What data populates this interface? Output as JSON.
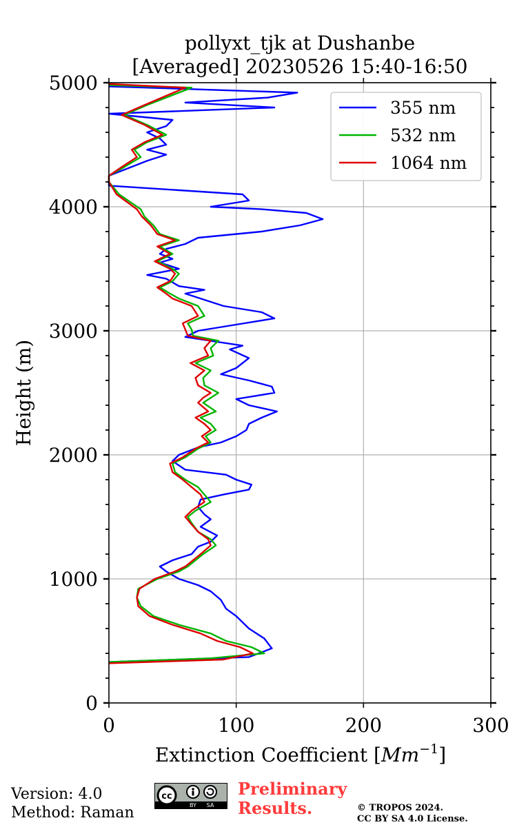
{
  "chart_data": {
    "type": "line",
    "title_line1": "pollyxt_tjk at Dushanbe",
    "title_line2": "[Averaged] 20230526 15:40-16:50",
    "xlabel_text": "Extinction Coefficient [",
    "xlabel_unit": "Mm",
    "xlabel_exp": "−1",
    "xlabel_close": "]",
    "ylabel": "Height (m)",
    "xlim": [
      0,
      300
    ],
    "ylim": [
      0,
      5000
    ],
    "xticks": [
      0,
      100,
      200,
      300
    ],
    "yticks": [
      0,
      1000,
      2000,
      3000,
      4000,
      5000
    ],
    "grid": true,
    "legend_position": "top-right",
    "series": [
      {
        "name": "355 nm",
        "color": "#0000ff",
        "x": [
          0,
          110,
          128,
          122,
          110,
          105,
          100,
          92,
          88,
          80,
          70,
          55,
          45,
          40,
          50,
          65,
          70,
          80,
          85,
          72,
          80,
          75,
          70,
          72,
          90,
          110,
          112,
          100,
          92,
          60,
          50,
          55,
          70,
          88,
          100,
          108,
          110,
          120,
          132,
          110,
          100,
          130,
          128,
          110,
          88,
          100,
          110,
          95,
          105,
          60,
          70,
          100,
          130,
          120,
          90,
          75,
          60,
          75,
          55,
          45,
          30,
          55,
          40,
          50,
          40,
          45,
          60,
          70,
          120,
          150,
          168,
          155,
          120,
          80,
          110,
          105,
          0,
          0,
          30,
          45,
          30,
          45,
          40,
          30,
          45,
          50,
          0,
          130,
          60,
          125,
          148,
          0
        ],
        "y": [
          330,
          370,
          440,
          520,
          600,
          650,
          700,
          760,
          830,
          900,
          950,
          1000,
          1060,
          1100,
          1150,
          1200,
          1260,
          1300,
          1350,
          1420,
          1480,
          1520,
          1580,
          1640,
          1680,
          1720,
          1760,
          1800,
          1840,
          1880,
          1950,
          2000,
          2060,
          2100,
          2150,
          2200,
          2250,
          2300,
          2350,
          2400,
          2450,
          2500,
          2550,
          2600,
          2650,
          2700,
          2780,
          2850,
          2880,
          2950,
          3000,
          3050,
          3100,
          3150,
          3200,
          3250,
          3300,
          3330,
          3360,
          3420,
          3450,
          3500,
          3550,
          3580,
          3620,
          3660,
          3700,
          3750,
          3800,
          3850,
          3900,
          3950,
          3980,
          4000,
          4050,
          4100,
          4170,
          4250,
          4370,
          4420,
          4460,
          4500,
          4550,
          4600,
          4650,
          4700,
          4750,
          4800,
          4840,
          4880,
          4920,
          4970
        ]
      },
      {
        "name": "532 nm",
        "color": "#00b400",
        "x": [
          0,
          80,
          122,
          112,
          92,
          80,
          55,
          35,
          25,
          22,
          23,
          38,
          55,
          62,
          68,
          74,
          84,
          80,
          70,
          65,
          62,
          68,
          80,
          75,
          70,
          60,
          52,
          50,
          60,
          70,
          80,
          76,
          84,
          80,
          72,
          84,
          74,
          80,
          86,
          75,
          74,
          80,
          68,
          82,
          80,
          86,
          66,
          65,
          62,
          75,
          70,
          55,
          48,
          40,
          50,
          55,
          50,
          38,
          50,
          40,
          55,
          40,
          35,
          28,
          25,
          8,
          0,
          0,
          12,
          25,
          20,
          30,
          45,
          30,
          12,
          30,
          65,
          0
        ],
        "y": [
          330,
          360,
          400,
          450,
          500,
          560,
          630,
          700,
          780,
          850,
          920,
          1000,
          1060,
          1100,
          1150,
          1200,
          1270,
          1320,
          1380,
          1450,
          1500,
          1550,
          1620,
          1680,
          1740,
          1800,
          1860,
          1930,
          1980,
          2050,
          2100,
          2150,
          2200,
          2250,
          2300,
          2350,
          2420,
          2460,
          2500,
          2560,
          2620,
          2680,
          2740,
          2800,
          2860,
          2920,
          2960,
          3010,
          3060,
          3120,
          3200,
          3260,
          3300,
          3350,
          3400,
          3460,
          3500,
          3560,
          3620,
          3680,
          3730,
          3780,
          3850,
          3920,
          3980,
          4100,
          4200,
          4250,
          4320,
          4400,
          4460,
          4520,
          4580,
          4660,
          4740,
          4820,
          4960,
          4980
        ]
      },
      {
        "name": "1064 nm",
        "color": "#dd0000",
        "x": [
          0,
          90,
          113,
          103,
          85,
          72,
          50,
          32,
          23,
          22,
          24,
          36,
          52,
          60,
          66,
          72,
          80,
          78,
          70,
          64,
          60,
          65,
          75,
          72,
          65,
          58,
          50,
          48,
          58,
          68,
          78,
          73,
          80,
          75,
          68,
          78,
          70,
          74,
          80,
          70,
          68,
          75,
          64,
          78,
          75,
          80,
          62,
          60,
          58,
          70,
          65,
          50,
          45,
          38,
          48,
          52,
          48,
          36,
          48,
          38,
          52,
          38,
          33,
          26,
          22,
          6,
          0,
          0,
          10,
          22,
          18,
          28,
          42,
          28,
          10,
          28,
          60,
          0
        ],
        "y": [
          320,
          350,
          400,
          450,
          500,
          560,
          630,
          700,
          780,
          850,
          920,
          1000,
          1060,
          1100,
          1150,
          1200,
          1270,
          1320,
          1380,
          1450,
          1500,
          1550,
          1620,
          1680,
          1740,
          1800,
          1860,
          1930,
          1980,
          2050,
          2100,
          2150,
          2200,
          2250,
          2300,
          2350,
          2420,
          2460,
          2500,
          2560,
          2620,
          2680,
          2740,
          2800,
          2860,
          2920,
          2960,
          3010,
          3060,
          3120,
          3200,
          3260,
          3300,
          3350,
          3400,
          3460,
          3500,
          3560,
          3620,
          3680,
          3730,
          3780,
          3850,
          3920,
          3980,
          4100,
          4200,
          4250,
          4320,
          4400,
          4460,
          4520,
          4580,
          4660,
          4740,
          4820,
          4960,
          4990
        ]
      }
    ]
  },
  "footer": {
    "version": "Version: 4.0",
    "method": "Method: Raman",
    "prelim_line1": "Preliminary",
    "prelim_line2": "Results.",
    "copyright_line1": "© TROPOS 2024.",
    "copyright_line2": "CC BY SA 4.0 License."
  },
  "license_badge": {
    "cc": "cc",
    "by": "BY",
    "sa": "SA"
  }
}
